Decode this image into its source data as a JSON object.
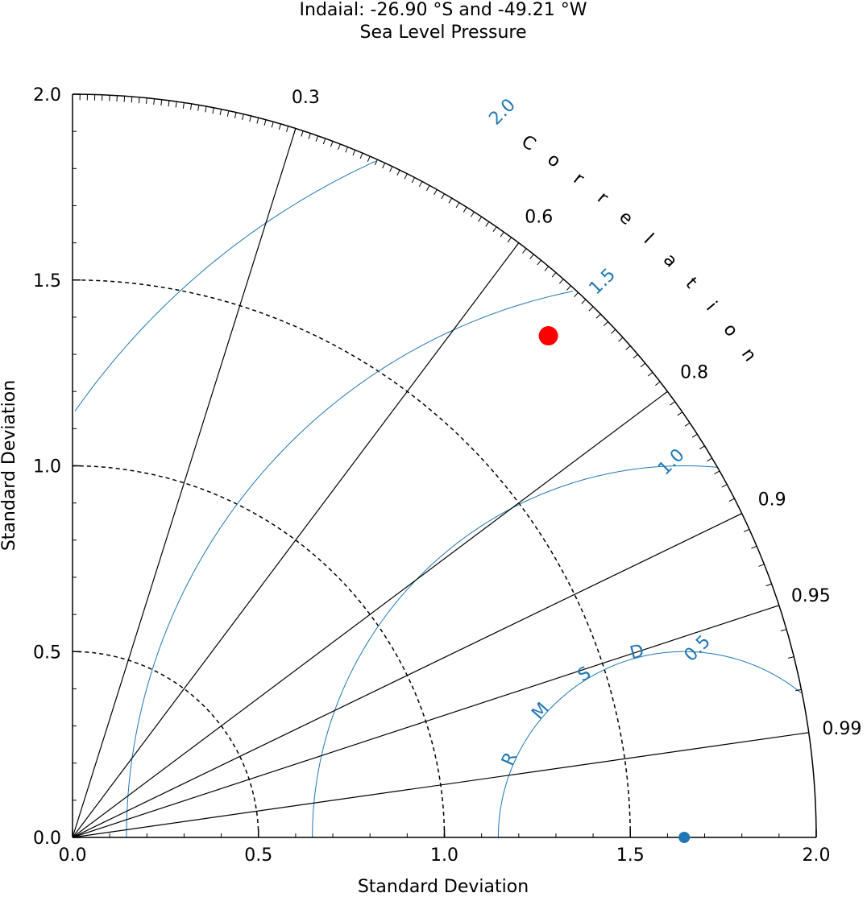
{
  "chart_data": {
    "type": "taylor_diagram",
    "title": "Indaial: -26.90 °S and -49.21 °W",
    "subtitle": "Sea Level Pressure",
    "xlabel": "Standard Deviation",
    "ylabel": "Standard Deviation",
    "std_range": [
      0.0,
      2.0
    ],
    "std_ticks": [
      "0.0",
      "0.5",
      "1.0",
      "1.5",
      "2.0"
    ],
    "std_tick_values": [
      0.0,
      0.5,
      1.0,
      1.5,
      2.0
    ],
    "correlation_label": "Correlation",
    "correlation_ticks": [
      {
        "value": 0.3,
        "label": "0.3"
      },
      {
        "value": 0.6,
        "label": "0.6"
      },
      {
        "value": 0.8,
        "label": "0.8"
      },
      {
        "value": 0.9,
        "label": "0.9"
      },
      {
        "value": 0.95,
        "label": "0.95"
      },
      {
        "value": 0.99,
        "label": "0.99"
      }
    ],
    "rmsd_label": "RMSD",
    "rmsd_contours": [
      {
        "value": 0.5,
        "label": "0.5"
      },
      {
        "value": 1.0,
        "label": "1.0"
      },
      {
        "value": 1.5,
        "label": "1.5"
      },
      {
        "value": 2.0,
        "label": "2.0"
      }
    ],
    "reference": {
      "std": 1.645,
      "color": "#1f77b4"
    },
    "points": [
      {
        "std": 1.86,
        "correlation": 0.688,
        "color": "#ff0000"
      }
    ],
    "grid": true
  }
}
